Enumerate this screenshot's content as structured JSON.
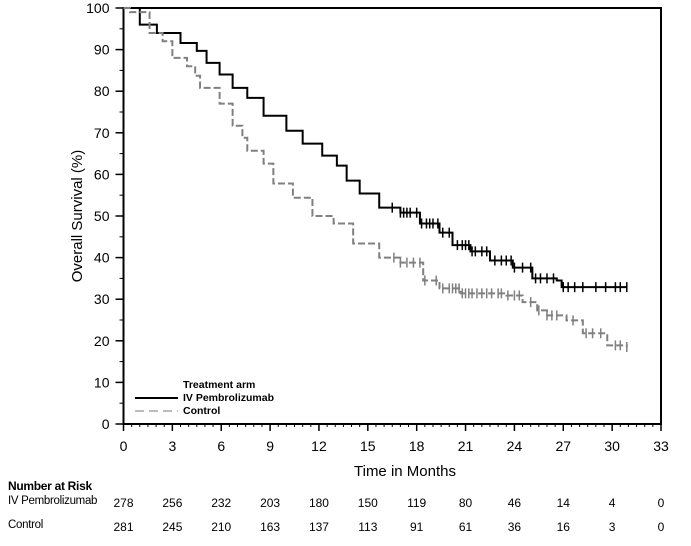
{
  "chart_data": {
    "type": "line",
    "subtype": "kaplan-meier",
    "xlabel": "Time in Months",
    "ylabel": "Overall Survival (%)",
    "xlim": [
      0,
      33
    ],
    "ylim": [
      0,
      100
    ],
    "xticks": [
      "0",
      "3",
      "6",
      "9",
      "12",
      "15",
      "18",
      "21",
      "24",
      "27",
      "30",
      "33"
    ],
    "yticks": [
      "0",
      "10",
      "20",
      "30",
      "40",
      "50",
      "60",
      "70",
      "80",
      "90",
      "100"
    ],
    "grid": false,
    "legend": {
      "title": "Treatment arm",
      "placement": "bottom-left",
      "entries": [
        "IV Pembrolizumab",
        "Control"
      ]
    },
    "series": [
      {
        "name": "IV Pembrolizumab",
        "color": "#000000",
        "style": "solid",
        "x": [
          0,
          0.4,
          1.0,
          2.05,
          3.5,
          4.5,
          5.1,
          5.9,
          6.7,
          7.6,
          8.6,
          10.0,
          11.0,
          12.2,
          13.1,
          13.7,
          14.5,
          15.7,
          17.0,
          18.2,
          19.4,
          20.2,
          21.3,
          22.5,
          23.9,
          25.1,
          26.6,
          26.9,
          30.9
        ],
        "y": [
          100,
          100,
          96,
          94,
          91.6,
          89.7,
          86.8,
          84,
          80.8,
          78.4,
          74.1,
          70.5,
          67.4,
          64.5,
          62.1,
          58.5,
          55.4,
          52,
          50.8,
          48.2,
          46,
          43,
          41.5,
          39.3,
          37.6,
          35,
          34.5,
          32.9,
          32.9
        ],
        "censored": [
          16.5,
          17,
          17.2,
          17.4,
          17.6,
          18,
          18.3,
          18.6,
          18.8,
          19,
          19.3,
          19.6,
          20,
          20.5,
          20.8,
          21,
          21.2,
          21.4,
          21.6,
          22,
          22.3,
          22.8,
          23.2,
          23.5,
          23.8,
          24,
          24.5,
          25,
          25.3,
          25.6,
          26,
          26.4,
          27,
          27.3,
          27.7,
          28.2,
          29,
          29.6,
          30.2,
          30.5,
          30.9
        ]
      },
      {
        "name": "Control",
        "color": "#808080",
        "style": "dashed",
        "x": [
          0,
          0.4,
          1.6,
          2.4,
          3.0,
          3.9,
          4.4,
          4.7,
          5.9,
          6.7,
          7.3,
          7.6,
          8.6,
          9.2,
          10.4,
          11.6,
          12.9,
          14.1,
          15.7,
          17.0,
          18.4,
          19.4,
          20.7,
          23.5,
          24.5,
          25.4,
          26.0,
          27.2,
          28.2,
          29.4,
          29.7,
          30.9
        ],
        "y": [
          100,
          99,
          94,
          92,
          88,
          86,
          83.7,
          80.8,
          77,
          71.7,
          68.8,
          65.7,
          62.6,
          57.8,
          54.4,
          50,
          48.2,
          43.4,
          40,
          38.8,
          34.5,
          32.6,
          31.4,
          30.9,
          29.3,
          27.3,
          26.1,
          24.9,
          21.8,
          21.8,
          18.9,
          18.5
        ],
        "censored": [
          16.6,
          17,
          17.4,
          17.8,
          18.2,
          18.5,
          19.2,
          19.6,
          20,
          20.2,
          20.4,
          20.6,
          20.8,
          21,
          21.2,
          21.4,
          21.7,
          22,
          22.3,
          22.6,
          23,
          23.2,
          23.6,
          24,
          24.3,
          25,
          25.5,
          26,
          26.3,
          26.6,
          27.6,
          28.4,
          28.8,
          29.3,
          30.2,
          30.5,
          30.9
        ]
      }
    ],
    "risk_table": {
      "title": "Number at Risk",
      "times": [
        0,
        3,
        6,
        9,
        12,
        15,
        18,
        21,
        24,
        27,
        30,
        33
      ],
      "rows": [
        {
          "label": "IV Pembrolizumab",
          "values": [
            "278",
            "256",
            "232",
            "203",
            "180",
            "150",
            "119",
            "80",
            "46",
            "14",
            "4",
            "0"
          ]
        },
        {
          "label": "Control",
          "values": [
            "281",
            "245",
            "210",
            "163",
            "137",
            "113",
            "91",
            "61",
            "36",
            "16",
            "3",
            "0"
          ]
        }
      ]
    }
  }
}
